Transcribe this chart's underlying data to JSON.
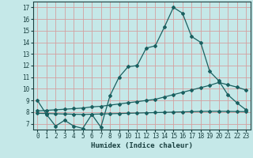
{
  "xlabel": "Humidex (Indice chaleur)",
  "bg_color": "#c5e8e8",
  "grid_color": "#d4a0a0",
  "line_color": "#1a6060",
  "xlim": [
    -0.5,
    23.5
  ],
  "ylim": [
    6.5,
    17.5
  ],
  "xticks": [
    0,
    1,
    2,
    3,
    4,
    5,
    6,
    7,
    8,
    9,
    10,
    11,
    12,
    13,
    14,
    15,
    16,
    17,
    18,
    19,
    20,
    21,
    22,
    23
  ],
  "yticks": [
    7,
    8,
    9,
    10,
    11,
    12,
    13,
    14,
    15,
    16,
    17
  ],
  "line1_x": [
    0,
    1,
    2,
    3,
    4,
    5,
    6,
    7,
    8,
    9,
    10,
    11,
    12,
    13,
    14,
    15,
    16,
    17,
    18,
    19,
    20,
    21,
    22,
    23
  ],
  "line1_y": [
    9.0,
    7.8,
    6.8,
    7.3,
    6.8,
    6.6,
    7.8,
    6.7,
    9.4,
    11.0,
    11.9,
    12.0,
    13.5,
    13.7,
    15.3,
    17.0,
    16.5,
    14.5,
    14.0,
    11.5,
    10.7,
    9.5,
    8.8,
    8.2
  ],
  "line2_x": [
    0,
    1,
    2,
    3,
    4,
    5,
    6,
    7,
    8,
    9,
    10,
    11,
    12,
    13,
    14,
    15,
    16,
    17,
    18,
    19,
    20,
    21,
    22,
    23
  ],
  "line2_y": [
    8.1,
    8.15,
    8.2,
    8.25,
    8.3,
    8.35,
    8.45,
    8.5,
    8.6,
    8.7,
    8.8,
    8.9,
    9.0,
    9.1,
    9.3,
    9.5,
    9.7,
    9.9,
    10.1,
    10.3,
    10.55,
    10.35,
    10.15,
    9.9
  ],
  "line3_x": [
    0,
    1,
    2,
    3,
    4,
    5,
    6,
    7,
    8,
    9,
    10,
    11,
    12,
    13,
    14,
    15,
    16,
    17,
    18,
    19,
    20,
    21,
    22,
    23
  ],
  "line3_y": [
    7.9,
    7.88,
    7.86,
    7.84,
    7.82,
    7.8,
    7.82,
    7.84,
    7.86,
    7.88,
    7.9,
    7.92,
    7.94,
    7.96,
    7.98,
    8.0,
    8.02,
    8.04,
    8.06,
    8.07,
    8.07,
    8.06,
    8.05,
    8.04
  ]
}
